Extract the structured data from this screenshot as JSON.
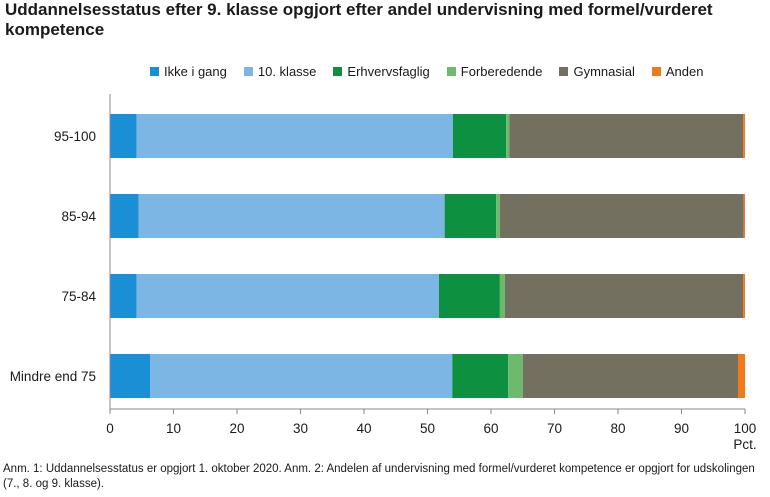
{
  "title": "Uddannelsesstatus efter 9. klasse opgjort efter andel undervisning med formel/vurderet kompetence",
  "note": "Anm. 1: Uddannelsesstatus er opgjort 1. oktober 2020. Anm. 2: Andelen af undervisning med formel/vurderet kompetence er opgjort for udskolingen (7., 8. og 9. klasse).",
  "chart_data": {
    "type": "bar",
    "orientation": "horizontal",
    "stacked": true,
    "categories": [
      "95-100",
      "85-94",
      "75-84",
      "Mindre end 75"
    ],
    "series": [
      {
        "name": "Ikke i gang",
        "color": "#1a8fd6",
        "values": [
          4.2,
          4.5,
          4.2,
          6.3
        ]
      },
      {
        "name": "10. klasse",
        "color": "#7cb6e4",
        "values": [
          49.8,
          48.2,
          47.6,
          47.6
        ]
      },
      {
        "name": "Erhvervsfaglig",
        "color": "#0d9140",
        "values": [
          8.4,
          8.1,
          9.6,
          8.8
        ]
      },
      {
        "name": "Forberedende",
        "color": "#6dba6e",
        "values": [
          0.5,
          0.6,
          0.8,
          2.3
        ]
      },
      {
        "name": "Gymnasial",
        "color": "#74705f",
        "values": [
          36.8,
          38.4,
          37.5,
          33.9
        ]
      },
      {
        "name": "Anden",
        "color": "#f07a1a",
        "values": [
          0.3,
          0.2,
          0.3,
          1.1
        ]
      }
    ],
    "xlim": [
      0,
      100
    ],
    "xticks": [
      0,
      10,
      20,
      30,
      40,
      50,
      60,
      70,
      80,
      90,
      100
    ],
    "xunit": "Pct.",
    "legend_position": "top",
    "grid": false
  }
}
